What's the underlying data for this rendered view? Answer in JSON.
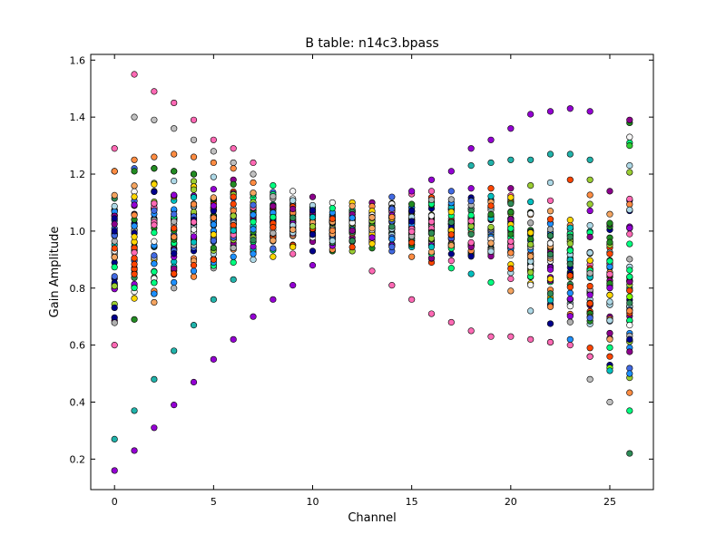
{
  "chart_data": {
    "type": "scatter",
    "title": "B table: n14c3.bpass",
    "xlabel": "Channel",
    "ylabel": "Gain Amplitude",
    "xlim": [
      -1.2,
      27.2
    ],
    "ylim": [
      0.093,
      1.62
    ],
    "xticks": [
      "0",
      "5",
      "10",
      "15",
      "20",
      "25"
    ],
    "yticks": [
      "0.2",
      "0.4",
      "0.6",
      "0.8",
      "1.0",
      "1.2",
      "1.4",
      "1.6"
    ],
    "grid": false,
    "legend": "none",
    "palette": [
      "#1e90ff",
      "#00ff7f",
      "#2e8b57",
      "#ff8c42",
      "#f5f5f5",
      "#8b008b",
      "#00bfbf",
      "#4169e1",
      "#f4a460",
      "#b0b0b0",
      "#228b22",
      "#ff69b4",
      "#00008b",
      "#ffd700",
      "#9acd32",
      "#9400d3",
      "#ff4500",
      "#add8e6"
    ],
    "envelope": {
      "channels": [
        0,
        1,
        2,
        3,
        4,
        5,
        6,
        7,
        8,
        9,
        10,
        11,
        12,
        13,
        14,
        15,
        16,
        17,
        18,
        19,
        20,
        21,
        22,
        23,
        24,
        25,
        26
      ],
      "upper": [
        1.21,
        1.22,
        1.22,
        1.21,
        1.2,
        1.19,
        1.18,
        1.17,
        1.16,
        1.14,
        1.12,
        1.1,
        1.1,
        1.1,
        1.12,
        1.13,
        1.14,
        1.14,
        1.15,
        1.15,
        1.15,
        1.16,
        1.17,
        1.18,
        1.18,
        1.14,
        1.33
      ],
      "lower": [
        0.6,
        0.69,
        0.75,
        0.8,
        0.84,
        0.87,
        0.89,
        0.9,
        0.91,
        0.92,
        0.93,
        0.93,
        0.93,
        0.94,
        0.93,
        0.91,
        0.89,
        0.87,
        0.85,
        0.82,
        0.79,
        0.72,
        0.61,
        0.62,
        0.56,
        0.53,
        0.22
      ]
    },
    "series": [
      {
        "color": "#ff69b4",
        "x": [
          0,
          1,
          2,
          3,
          4,
          5,
          6,
          7,
          13,
          14,
          15,
          16,
          17,
          18,
          19,
          20,
          21,
          22,
          23,
          24
        ],
        "y": [
          1.29,
          1.55,
          1.49,
          1.45,
          1.39,
          1.32,
          1.29,
          1.24,
          0.86,
          0.81,
          0.76,
          0.71,
          0.68,
          0.65,
          0.63,
          0.63,
          0.62,
          0.61,
          0.6,
          0.56
        ]
      },
      {
        "color": "#9400d3",
        "x": [
          0,
          1,
          2,
          3,
          4,
          5,
          6,
          7,
          8,
          9,
          10,
          15,
          16,
          17,
          18,
          19,
          20,
          21,
          22,
          23,
          24
        ],
        "y": [
          0.16,
          0.23,
          0.31,
          0.39,
          0.47,
          0.55,
          0.62,
          0.7,
          0.76,
          0.81,
          0.88,
          1.14,
          1.18,
          1.21,
          1.29,
          1.32,
          1.36,
          1.41,
          1.42,
          1.43,
          1.42
        ]
      },
      {
        "color": "#20b2aa",
        "x": [
          0,
          1,
          2,
          3,
          4,
          5,
          6,
          18,
          19,
          20,
          21,
          22,
          23,
          24
        ],
        "y": [
          0.27,
          0.37,
          0.48,
          0.58,
          0.67,
          0.76,
          0.83,
          1.23,
          1.24,
          1.25,
          1.25,
          1.27,
          1.27,
          1.25
        ]
      },
      {
        "color": "#c0c0c0",
        "x": [
          1,
          2,
          3,
          4,
          5,
          6,
          7,
          24,
          25
        ],
        "y": [
          1.4,
          1.39,
          1.36,
          1.32,
          1.28,
          1.24,
          1.2,
          0.48,
          0.4
        ]
      },
      {
        "color": "#228b22",
        "x": [
          1,
          2,
          3,
          4,
          26
        ],
        "y": [
          1.21,
          1.22,
          1.21,
          1.2,
          1.38
        ]
      },
      {
        "color": "#8b008b",
        "x": [
          26
        ],
        "y": [
          1.39
        ]
      },
      {
        "color": "#00ff7f",
        "x": [
          26
        ],
        "y": [
          1.31
        ]
      },
      {
        "color": "#32cd32",
        "x": [
          26
        ],
        "y": [
          1.3
        ]
      },
      {
        "color": "#add8e6",
        "x": [
          26
        ],
        "y": [
          1.23
        ]
      },
      {
        "color": "#ff8c42",
        "x": [
          0,
          1,
          2,
          3,
          4,
          5,
          6
        ],
        "y": [
          1.21,
          1.25,
          1.26,
          1.27,
          1.26,
          1.24,
          1.22
        ]
      },
      {
        "color": "#1e90ff",
        "x": [
          2,
          3,
          4,
          5,
          6,
          7,
          26
        ],
        "y": [
          0.78,
          0.82,
          0.86,
          0.89,
          0.91,
          0.92,
          0.5
        ]
      },
      {
        "color": "#ff4500",
        "x": [
          3,
          4,
          5,
          24,
          25
        ],
        "y": [
          0.85,
          0.88,
          0.9,
          0.59,
          0.56
        ]
      },
      {
        "color": "#7fff00",
        "x": [
          25,
          26
        ],
        "y": [
          0.52,
          0.77
        ]
      },
      {
        "color": "#ffffff",
        "x": [
          26
        ],
        "y": [
          0.67
        ]
      },
      {
        "color": "#00008b",
        "x": [
          26
        ],
        "y": [
          0.62
        ]
      },
      {
        "color": "#ff8c42",
        "x": [
          26
        ],
        "y": [
          0.72
        ]
      },
      {
        "color": "#00ff7f",
        "x": [
          26
        ],
        "y": [
          0.84
        ]
      },
      {
        "color": "#00bfbf",
        "x": [
          25
        ],
        "y": [
          0.51
        ]
      }
    ]
  }
}
